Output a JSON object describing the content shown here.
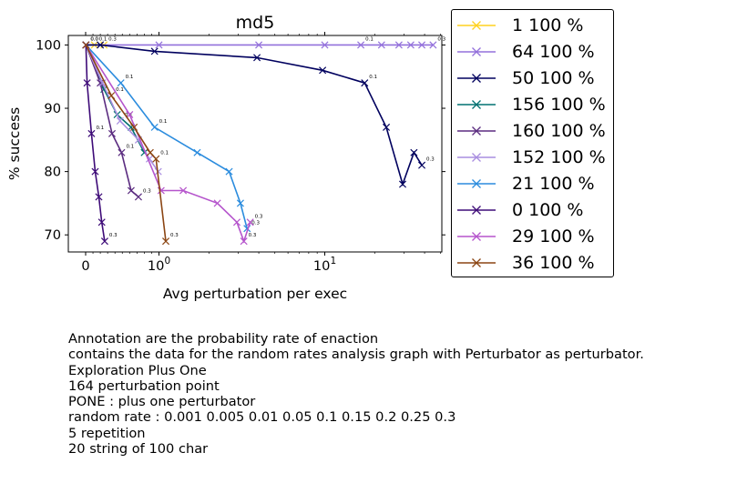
{
  "chart_data": {
    "type": "line",
    "title": "md5",
    "xlabel": "Avg perturbation per exec",
    "ylabel": "% success",
    "x_scale": "symlog",
    "x_ticks": [
      {
        "value": 0,
        "label": "0"
      },
      {
        "value": 1,
        "label": "10^0"
      },
      {
        "value": 10,
        "label": "10^1"
      }
    ],
    "y_ticks": [
      70,
      80,
      90,
      100
    ],
    "ylim": [
      67.3,
      101.5
    ],
    "grid": false,
    "legend_position": "right",
    "series": [
      {
        "name": "1 100 %",
        "color": "#ffd21f",
        "x": [
          0.004,
          0.12,
          0.25
        ],
        "y": [
          100,
          100,
          100
        ],
        "annotations": [
          "0.0",
          "0.1",
          "0.3"
        ]
      },
      {
        "name": "64 100 %",
        "color": "#9370db",
        "x": [
          0.004,
          1.0,
          4.0,
          10.0,
          16.5,
          22.0,
          28.0,
          33.0,
          38.5,
          45.0
        ],
        "y": [
          100,
          100,
          100,
          100,
          100,
          100,
          100,
          100,
          100,
          100
        ],
        "annotations": [
          "",
          "",
          "",
          "",
          "0.1",
          "",
          "",
          "",
          "",
          "0.3"
        ]
      },
      {
        "name": "50 100 %",
        "color": "#00005e",
        "x": [
          0.004,
          0.2,
          0.94,
          3.9,
          9.7,
          17.4,
          23.5,
          29.5,
          34.5,
          38.5
        ],
        "y": [
          100,
          100,
          99,
          98,
          96,
          94,
          87,
          78,
          83,
          81
        ],
        "annotations": [
          "0.0",
          "",
          "",
          "",
          "",
          "0.1",
          "",
          "",
          "",
          "0.3"
        ]
      },
      {
        "name": "156 100 %",
        "color": "#007070",
        "x": [
          0.004,
          0.25,
          0.43,
          0.62,
          0.8
        ],
        "y": [
          100,
          93,
          89,
          87,
          83
        ],
        "annotations": [
          "",
          "",
          "",
          "",
          ""
        ]
      },
      {
        "name": "160 100 %",
        "color": "#5b2c80",
        "x": [
          0.004,
          0.2,
          0.36,
          0.49,
          0.62,
          0.72
        ],
        "y": [
          100,
          94,
          86,
          83,
          77,
          76
        ],
        "annotations": [
          "",
          "",
          "",
          "0.1",
          "",
          "0.3"
        ]
      },
      {
        "name": "152 100 %",
        "color": "#a98ee0",
        "x": [
          0.004,
          0.23,
          0.47,
          0.72,
          0.87,
          0.99
        ],
        "y": [
          100,
          94,
          88,
          85,
          82,
          80
        ],
        "annotations": [
          "",
          "",
          "0.1",
          "",
          "",
          ""
        ]
      },
      {
        "name": "21 100 %",
        "color": "#2b8cde",
        "x": [
          0.004,
          0.48,
          0.94,
          1.7,
          2.65,
          3.1,
          3.4
        ],
        "y": [
          100,
          94,
          87,
          83,
          80,
          75,
          71
        ],
        "annotations": [
          "",
          "0.1",
          "0.1",
          "",
          "",
          "",
          "0.3"
        ]
      },
      {
        "name": "0 100 %",
        "color": "#3e0b78",
        "x": [
          0.004,
          0.02,
          0.08,
          0.13,
          0.18,
          0.22,
          0.26
        ],
        "y": [
          100,
          94,
          86,
          80,
          76,
          72,
          69
        ],
        "annotations": [
          "",
          "",
          "0.1",
          "",
          "",
          "",
          "0.3"
        ]
      },
      {
        "name": "29 100 %",
        "color": "#b554cc",
        "x": [
          0.004,
          0.6,
          1.03,
          1.4,
          2.25,
          2.95,
          3.25,
          3.55
        ],
        "y": [
          100,
          89,
          77,
          77,
          75,
          72,
          69,
          72
        ],
        "annotations": [
          "",
          "",
          "",
          "",
          "",
          "",
          "0.3",
          "0.3"
        ]
      },
      {
        "name": "36 100 %",
        "color": "#8b4513",
        "x": [
          0.004,
          0.35,
          0.66,
          0.88,
          0.96,
          1.1
        ],
        "y": [
          100,
          92,
          87,
          83,
          82,
          69
        ],
        "annotations": [
          "",
          "0.1",
          "",
          "",
          "0.1",
          "0.3"
        ]
      }
    ]
  },
  "notes": [
    "Annotation are the probability rate of enaction",
    "contains the data for the random rates analysis graph with Perturbator as perturbator.",
    "Exploration Plus One",
    "164 perturbation point",
    "PONE : plus one perturbator",
    "random rate : 0.001 0.005 0.01 0.05 0.1 0.15 0.2 0.25 0.3",
    "5 repetition",
    "20 string of 100 char"
  ]
}
